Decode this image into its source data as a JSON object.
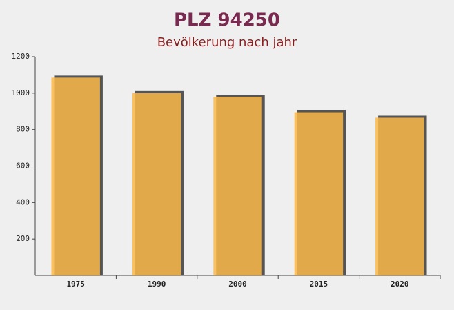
{
  "chart_data": {
    "type": "bar",
    "title": "PLZ 94250",
    "subtitle": "Bevölkerung nach jahr",
    "categories": [
      "1975",
      "1990",
      "2000",
      "2015",
      "2020"
    ],
    "values": [
      1085,
      1000,
      980,
      895,
      865
    ],
    "color": "#fbb84a",
    "ylim": [
      0,
      1200
    ],
    "yticks": [
      200,
      400,
      600,
      800,
      1000,
      1200
    ]
  }
}
